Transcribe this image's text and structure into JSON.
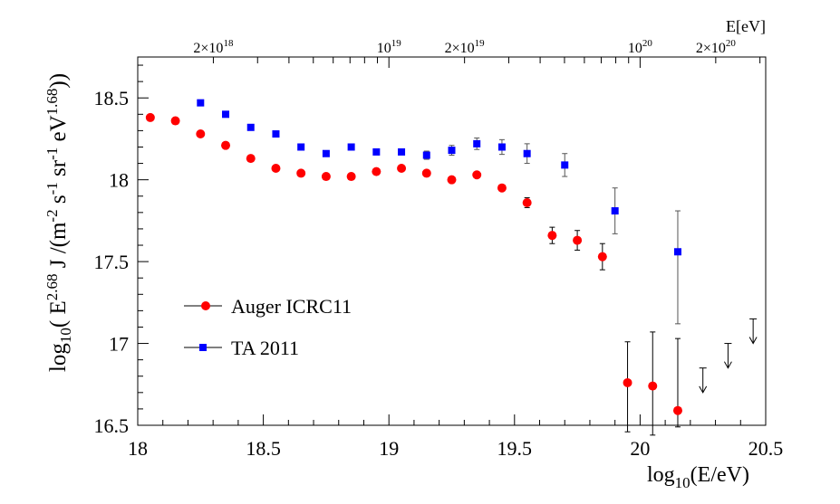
{
  "chart_data": {
    "type": "scatter",
    "x_axis": {
      "label_main": "log",
      "label_sub": "10",
      "label_rest": "(E/eV)",
      "range": [
        18,
        20.5
      ],
      "major_ticks": [
        18,
        18.5,
        19,
        19.5,
        20,
        20.5
      ],
      "tick_labels": [
        "18",
        "18.5",
        "19",
        "19.5",
        "20",
        "20.5"
      ]
    },
    "y_axis": {
      "label": "log10( E^2.68 J /(m^-2 s^-1 sr^-1 eV^1.68))",
      "range": [
        16.5,
        18.75
      ],
      "major_ticks": [
        16.5,
        17,
        17.5,
        18,
        18.5
      ],
      "tick_labels": [
        "16.5",
        "17",
        "17.5",
        "18",
        "18.5"
      ]
    },
    "top_axis": {
      "unit_label": "E[eV]",
      "ticks": [
        {
          "log10E": 18.301,
          "base": "2×10",
          "exp": "18"
        },
        {
          "log10E": 19.0,
          "base": "10",
          "exp": "19"
        },
        {
          "log10E": 19.301,
          "base": "2×10",
          "exp": "19"
        },
        {
          "log10E": 20.0,
          "base": "10",
          "exp": "20"
        },
        {
          "log10E": 20.301,
          "base": "2×10",
          "exp": "20"
        }
      ]
    },
    "series": [
      {
        "name": "Auger ICRC11",
        "marker": "circle",
        "color": "#ff0000",
        "points": [
          {
            "x": 18.05,
            "y": 18.38,
            "err": 0.005
          },
          {
            "x": 18.15,
            "y": 18.36,
            "err": 0.005
          },
          {
            "x": 18.25,
            "y": 18.28,
            "err": 0.005
          },
          {
            "x": 18.35,
            "y": 18.21,
            "err": 0.005
          },
          {
            "x": 18.45,
            "y": 18.13,
            "err": 0.005
          },
          {
            "x": 18.55,
            "y": 18.07,
            "err": 0.005
          },
          {
            "x": 18.65,
            "y": 18.04,
            "err": 0.005
          },
          {
            "x": 18.75,
            "y": 18.02,
            "err": 0.005
          },
          {
            "x": 18.85,
            "y": 18.02,
            "err": 0.005
          },
          {
            "x": 18.95,
            "y": 18.05,
            "err": 0.005
          },
          {
            "x": 19.05,
            "y": 18.07,
            "err": 0.01
          },
          {
            "x": 19.15,
            "y": 18.04,
            "err": 0.01
          },
          {
            "x": 19.25,
            "y": 18.0,
            "err": 0.01
          },
          {
            "x": 19.35,
            "y": 18.03,
            "err": 0.01
          },
          {
            "x": 19.45,
            "y": 17.95,
            "err": 0.015
          },
          {
            "x": 19.55,
            "y": 17.86,
            "err": 0.03
          },
          {
            "x": 19.65,
            "y": 17.66,
            "err": 0.05
          },
          {
            "x": 19.75,
            "y": 17.63,
            "err": 0.06
          },
          {
            "x": 19.85,
            "y": 17.53,
            "err": 0.08
          },
          {
            "x": 19.95,
            "y": 16.76,
            "err_up": 0.25,
            "err_down": 0.3
          },
          {
            "x": 20.05,
            "y": 16.74,
            "err_up": 0.33,
            "err_down": 0.3
          },
          {
            "x": 20.15,
            "y": 16.59,
            "err_up": 0.44,
            "err_down": 0.1
          }
        ]
      },
      {
        "name": "TA 2011",
        "marker": "square",
        "color": "#0000ff",
        "points": [
          {
            "x": 18.25,
            "y": 18.47,
            "err": 0.005
          },
          {
            "x": 18.35,
            "y": 18.4,
            "err": 0.005
          },
          {
            "x": 18.45,
            "y": 18.32,
            "err": 0.005
          },
          {
            "x": 18.55,
            "y": 18.28,
            "err": 0.005
          },
          {
            "x": 18.65,
            "y": 18.2,
            "err": 0.005
          },
          {
            "x": 18.75,
            "y": 18.16,
            "err": 0.005
          },
          {
            "x": 18.85,
            "y": 18.2,
            "err": 0.005
          },
          {
            "x": 18.95,
            "y": 18.17,
            "err": 0.01
          },
          {
            "x": 19.05,
            "y": 18.17,
            "err": 0.015
          },
          {
            "x": 19.15,
            "y": 18.15,
            "err": 0.025
          },
          {
            "x": 19.25,
            "y": 18.18,
            "err": 0.03
          },
          {
            "x": 19.35,
            "y": 18.22,
            "err": 0.035
          },
          {
            "x": 19.45,
            "y": 18.2,
            "err": 0.045
          },
          {
            "x": 19.55,
            "y": 18.16,
            "err": 0.06
          },
          {
            "x": 19.7,
            "y": 18.09,
            "err": 0.07
          },
          {
            "x": 19.9,
            "y": 17.81,
            "err": 0.14
          },
          {
            "x": 20.15,
            "y": 17.56,
            "err_up": 0.25,
            "err_down": 0.44
          }
        ]
      },
      {
        "name": "upper limits",
        "marker": "arrow-down",
        "color": "#000000",
        "points": [
          {
            "x": 20.25,
            "y": 16.85,
            "arrow_to": 16.7
          },
          {
            "x": 20.35,
            "y": 17.0,
            "arrow_to": 16.85
          },
          {
            "x": 20.45,
            "y": 17.15,
            "arrow_to": 17.0
          }
        ]
      }
    ],
    "legend": {
      "placement": "middle-left",
      "entries": [
        {
          "label": "Auger ICRC11",
          "marker": "circle",
          "color": "#ff0000"
        },
        {
          "label": "TA 2011",
          "marker": "square",
          "color": "#0000ff"
        }
      ]
    }
  }
}
